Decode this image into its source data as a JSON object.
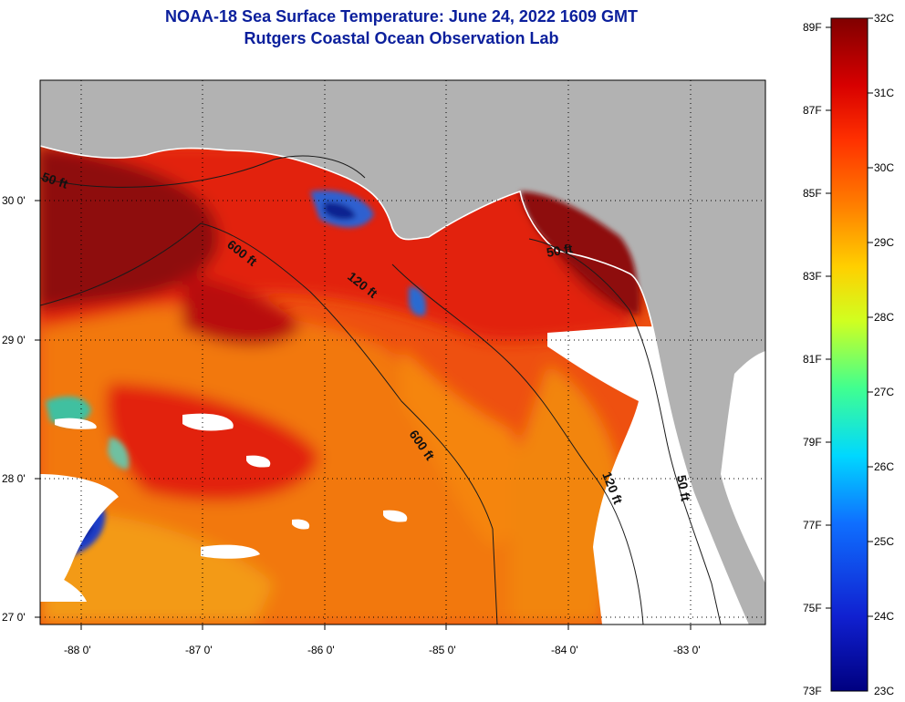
{
  "title": {
    "line1": "NOAA-18 Sea Surface Temperature:  June 24, 2022 1609 GMT",
    "line2": "Rutgers Coastal Ocean Observation Lab"
  },
  "map": {
    "lon_ticks": [
      "-88 0'",
      "-87 0'",
      "-86 0'",
      "-85 0'",
      "-84 0'",
      "-83 0'"
    ],
    "lat_ticks": [
      "30 0'",
      "29 0'",
      "28 0'",
      "27 0'"
    ],
    "contours": [
      "50 ft",
      "600 ft",
      "120 ft",
      "50 ft",
      "600 ft",
      "120 ft",
      "50 ft"
    ],
    "colors": {
      "land": "#b2b2b2",
      "cloud": "#ffffff",
      "warm_shelf": "#8e0c0c",
      "ocean_red": "#e0220e",
      "ocean_orange": "#f06a0c",
      "cool_water": "#0a2a9e"
    }
  },
  "colorbar": {
    "fahrenheit": [
      "89F",
      "87F",
      "85F",
      "83F",
      "81F",
      "79F",
      "77F",
      "75F",
      "73F"
    ],
    "celsius": [
      "32C",
      "31C",
      "30C",
      "29C",
      "28C",
      "27C",
      "26C",
      "25C",
      "24C",
      "23C"
    ],
    "range_c": [
      23,
      32
    ]
  }
}
